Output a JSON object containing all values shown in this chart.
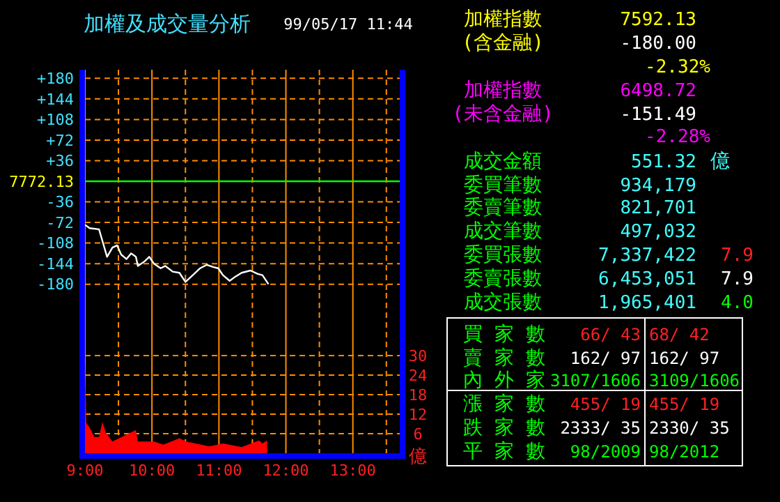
{
  "chart_data": [
    {
      "type": "line",
      "title": "加權及成交量分析",
      "subtitle": "99/05/17 11:44",
      "color": "#ffffff",
      "x": [
        9,
        9.07,
        9.21,
        9.24,
        9.33,
        9.41,
        9.48,
        9.54,
        9.62,
        9.69,
        9.76,
        9.79,
        9.89,
        9.96,
        10.03,
        10.13,
        10.2,
        10.31,
        10.41,
        10.5,
        10.61,
        10.72,
        10.82,
        10.92,
        10.99,
        11.06,
        11.16,
        11.23,
        11.34,
        11.47,
        11.58,
        11.65,
        11.74
      ],
      "values": [
        -76,
        -82,
        -84,
        -96,
        -132,
        -116,
        -112,
        -128,
        -136,
        -126,
        -132,
        -148,
        -140,
        -132,
        -144,
        -152,
        -148,
        -158,
        -160,
        -176,
        -164,
        -152,
        -146,
        -150,
        -152,
        -164,
        -174,
        -168,
        -160,
        -156,
        -162,
        -164,
        -180
      ],
      "xlim": [
        9,
        13.7
      ],
      "xticks": [
        9,
        9.5,
        10,
        10.5,
        11,
        11.5,
        12,
        12.5,
        13,
        13.5
      ],
      "ylim": [
        -195,
        195
      ],
      "yticks": [
        {
          "value": 180,
          "label": "+180"
        },
        {
          "value": 144,
          "label": "+144"
        },
        {
          "value": 108,
          "label": "+108"
        },
        {
          "value": 72,
          "label": "+72"
        },
        {
          "value": 36,
          "label": "+36"
        },
        -36,
        -72,
        -108,
        -144,
        -180
      ],
      "ref_lines": [
        {
          "axis": "y",
          "value": 0,
          "color": "#00ff00"
        }
      ],
      "annotations": [
        "7772.13"
      ],
      "grid": true,
      "tick_labels": "y"
    },
    {
      "type": "area",
      "color": "#ff0000",
      "ylabel": "億",
      "x": [
        9,
        9.02,
        9.07,
        9.14,
        9.21,
        9.26,
        9.31,
        9.41,
        9.76,
        9.79,
        10.03,
        10.17,
        10.41,
        10.51,
        10.86,
        11.06,
        11.34,
        11.6,
        11.65,
        11.72
      ],
      "values": [
        27.9,
        9.3,
        7.9,
        5,
        5,
        9.6,
        6.4,
        3.6,
        7.1,
        3.6,
        3.6,
        2.6,
        4.6,
        3.6,
        2.1,
        3,
        1.9,
        3.9,
        3,
        3.9
      ],
      "xlim": [
        9,
        13.7
      ],
      "xticks": [
        {
          "value": 9,
          "label": "9:00"
        },
        {
          "value": 9.5,
          "label": null
        },
        {
          "value": 10,
          "label": "10:00"
        },
        {
          "value": 10.5,
          "label": null
        },
        {
          "value": 11,
          "label": "11:00"
        },
        {
          "value": 11.5,
          "label": null
        },
        {
          "value": 12,
          "label": "12:00"
        },
        {
          "value": 12.5,
          "label": null
        },
        {
          "value": 13,
          "label": "13:00"
        },
        {
          "value": 13.5,
          "label": null
        }
      ],
      "ylim": [
        0,
        30
      ],
      "yticks": [
        6,
        12,
        18,
        24,
        30
      ],
      "grid": true
    },
    {
      "type": "other",
      "annotations": [
        "加權指數",
        "7592.13",
        "(含金融)",
        "-180.00",
        "-2.32%",
        "加權指數",
        "6498.72",
        "(未含金融)",
        "-151.49",
        "-2.28%",
        "成交金額",
        "551.32",
        "億",
        "委買筆數",
        "934,179",
        "委賣筆數",
        "821,701",
        "成交筆數",
        "497,032",
        "委買張數",
        "7,337,422",
        "7.9",
        "委賣張數",
        "6,453,051",
        "7.9",
        "成交張數",
        "1,965,401",
        "4.0",
        "買 家 數",
        "66/ 43",
        "68/ 42",
        "賣 家 數",
        "162/ 97",
        "162/ 97",
        "內 外 家",
        "3107/1606",
        "3109/1606",
        "漲 家 數",
        "455/ 19",
        "455/ 19",
        "跌 家 數",
        "2333/ 35",
        "2330/ 35",
        "平 家 數",
        "98/2009",
        "98/2012"
      ]
    }
  ]
}
